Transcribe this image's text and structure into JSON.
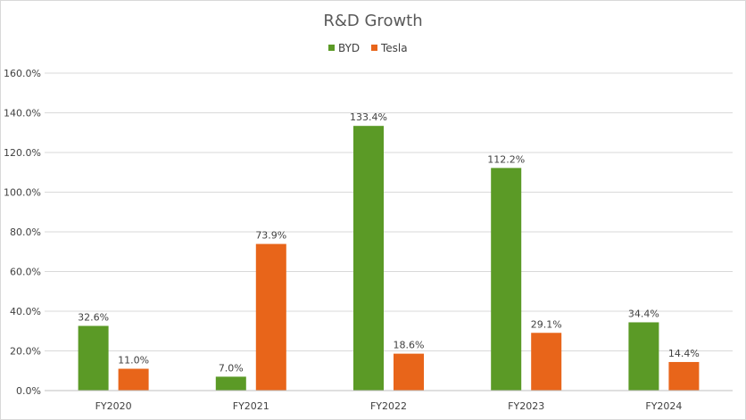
{
  "chart_data": {
    "type": "bar",
    "title": "R&D Growth",
    "xlabel": "",
    "ylabel": "",
    "categories": [
      "FY2020",
      "FY2021",
      "FY2022",
      "FY2023",
      "FY2024"
    ],
    "series": [
      {
        "name": "BYD",
        "color": "#5b9a26",
        "values": [
          32.6,
          7.0,
          133.4,
          112.2,
          34.4
        ]
      },
      {
        "name": "Tesla",
        "color": "#e8651a",
        "values": [
          11.0,
          73.9,
          18.6,
          29.1,
          14.4
        ]
      }
    ],
    "data_labels": [
      [
        "32.6%",
        "7.0%",
        "133.4%",
        "112.2%",
        "34.4%"
      ],
      [
        "11.0%",
        "73.9%",
        "18.6%",
        "29.1%",
        "14.4%"
      ]
    ],
    "ylim": [
      0,
      160
    ],
    "yticks": [
      0,
      20,
      40,
      60,
      80,
      100,
      120,
      140,
      160
    ],
    "ytick_labels": [
      "0.0%",
      "20.0%",
      "40.0%",
      "60.0%",
      "80.0%",
      "100.0%",
      "120.0%",
      "140.0%",
      "160.0%"
    ],
    "grid": true,
    "legend_position": "top-center",
    "gridline_color": "#d9d9d9"
  }
}
